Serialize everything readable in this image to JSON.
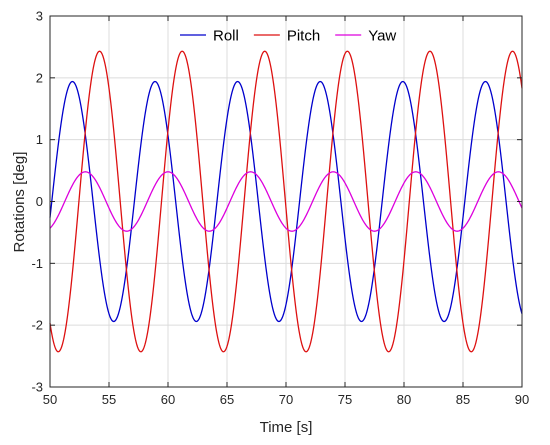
{
  "chart_data": {
    "type": "line",
    "title": "",
    "xlabel": "Time [s]",
    "ylabel": "Rotations [deg]",
    "xlim": [
      50,
      90
    ],
    "ylim": [
      -3,
      3
    ],
    "xticks": [
      50,
      55,
      60,
      65,
      70,
      75,
      80,
      85,
      90
    ],
    "yticks": [
      -3,
      -2,
      -1,
      0,
      1,
      2,
      3
    ],
    "grid": true,
    "legend_position": "top-center",
    "series": [
      {
        "name": "Roll",
        "color": "#0000cc",
        "amplitude": 1.94,
        "period_s": 7.0,
        "peak_time_s": 51.9
      },
      {
        "name": "Pitch",
        "color": "#dd1111",
        "amplitude": 2.43,
        "period_s": 7.0,
        "peak_time_s": 54.2
      },
      {
        "name": "Yaw",
        "color": "#dd00dd",
        "amplitude": 0.48,
        "period_s": 7.0,
        "peak_time_s": 53.0
      }
    ]
  }
}
